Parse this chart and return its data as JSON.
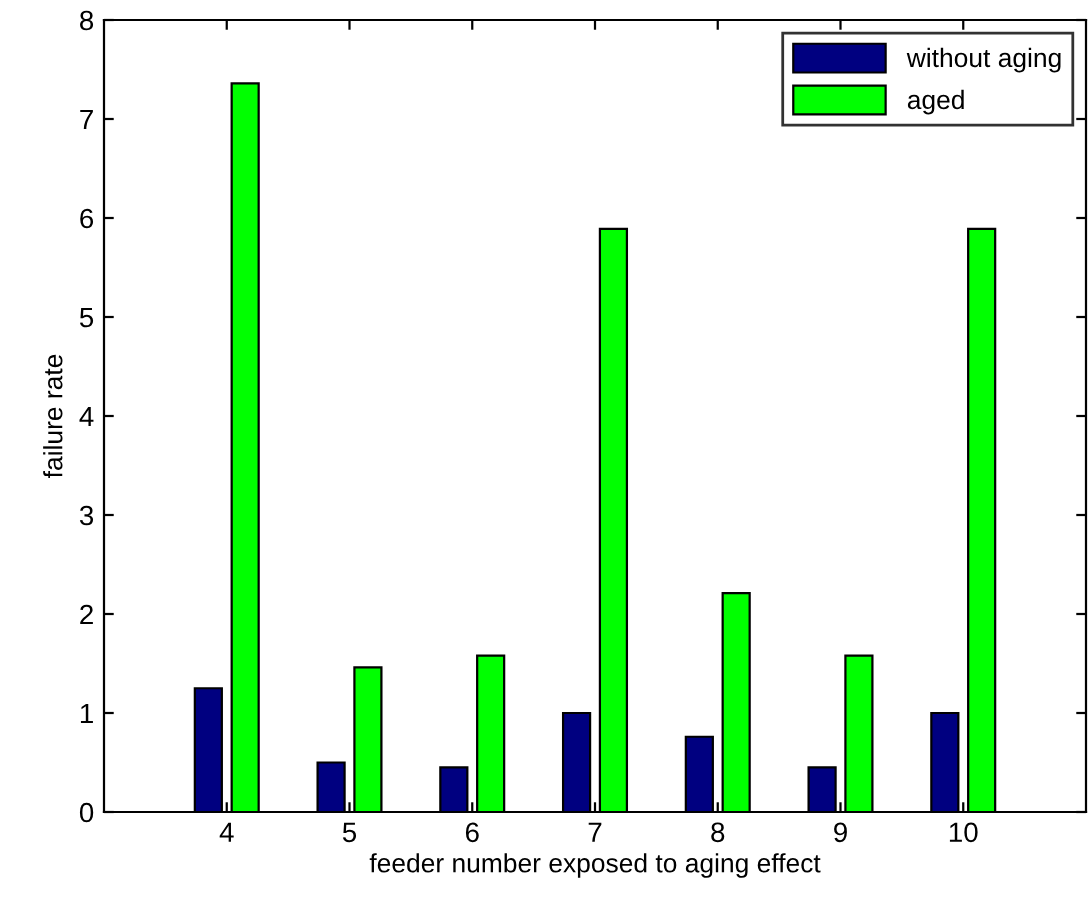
{
  "chart_data": {
    "type": "bar",
    "xlabel": "feeder number exposed to aging effect",
    "ylabel": "failure rate",
    "categories": [
      "4",
      "5",
      "6",
      "7",
      "8",
      "9",
      "10"
    ],
    "series": [
      {
        "name": "without aging",
        "color": "#000080",
        "values": [
          1.25,
          0.5,
          0.45,
          1.0,
          0.76,
          0.45,
          1.0
        ]
      },
      {
        "name": "aged",
        "color": "#00ff00",
        "values": [
          7.36,
          1.46,
          1.58,
          5.89,
          2.21,
          1.58,
          5.89
        ]
      }
    ],
    "ylim": [
      0,
      8
    ],
    "yticks": [
      0,
      1,
      2,
      3,
      4,
      5,
      6,
      7,
      8
    ],
    "grid": false,
    "legend": "top right"
  }
}
